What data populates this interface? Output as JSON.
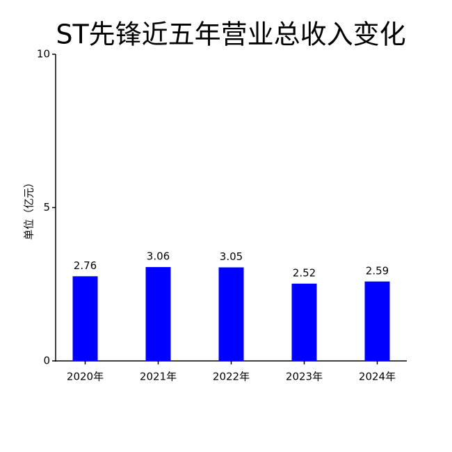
{
  "chart_data": {
    "type": "bar",
    "title": "ST先锋近五年营业总收入变化",
    "y_label": "单位（亿元）",
    "categories": [
      "2020年",
      "2021年",
      "2022年",
      "2023年",
      "2024年"
    ],
    "values": [
      2.76,
      3.06,
      3.05,
      2.52,
      2.59
    ],
    "color": "#0000ff",
    "ylim": [
      0,
      10
    ],
    "yticks": [
      0,
      5,
      10
    ],
    "grid": false
  }
}
